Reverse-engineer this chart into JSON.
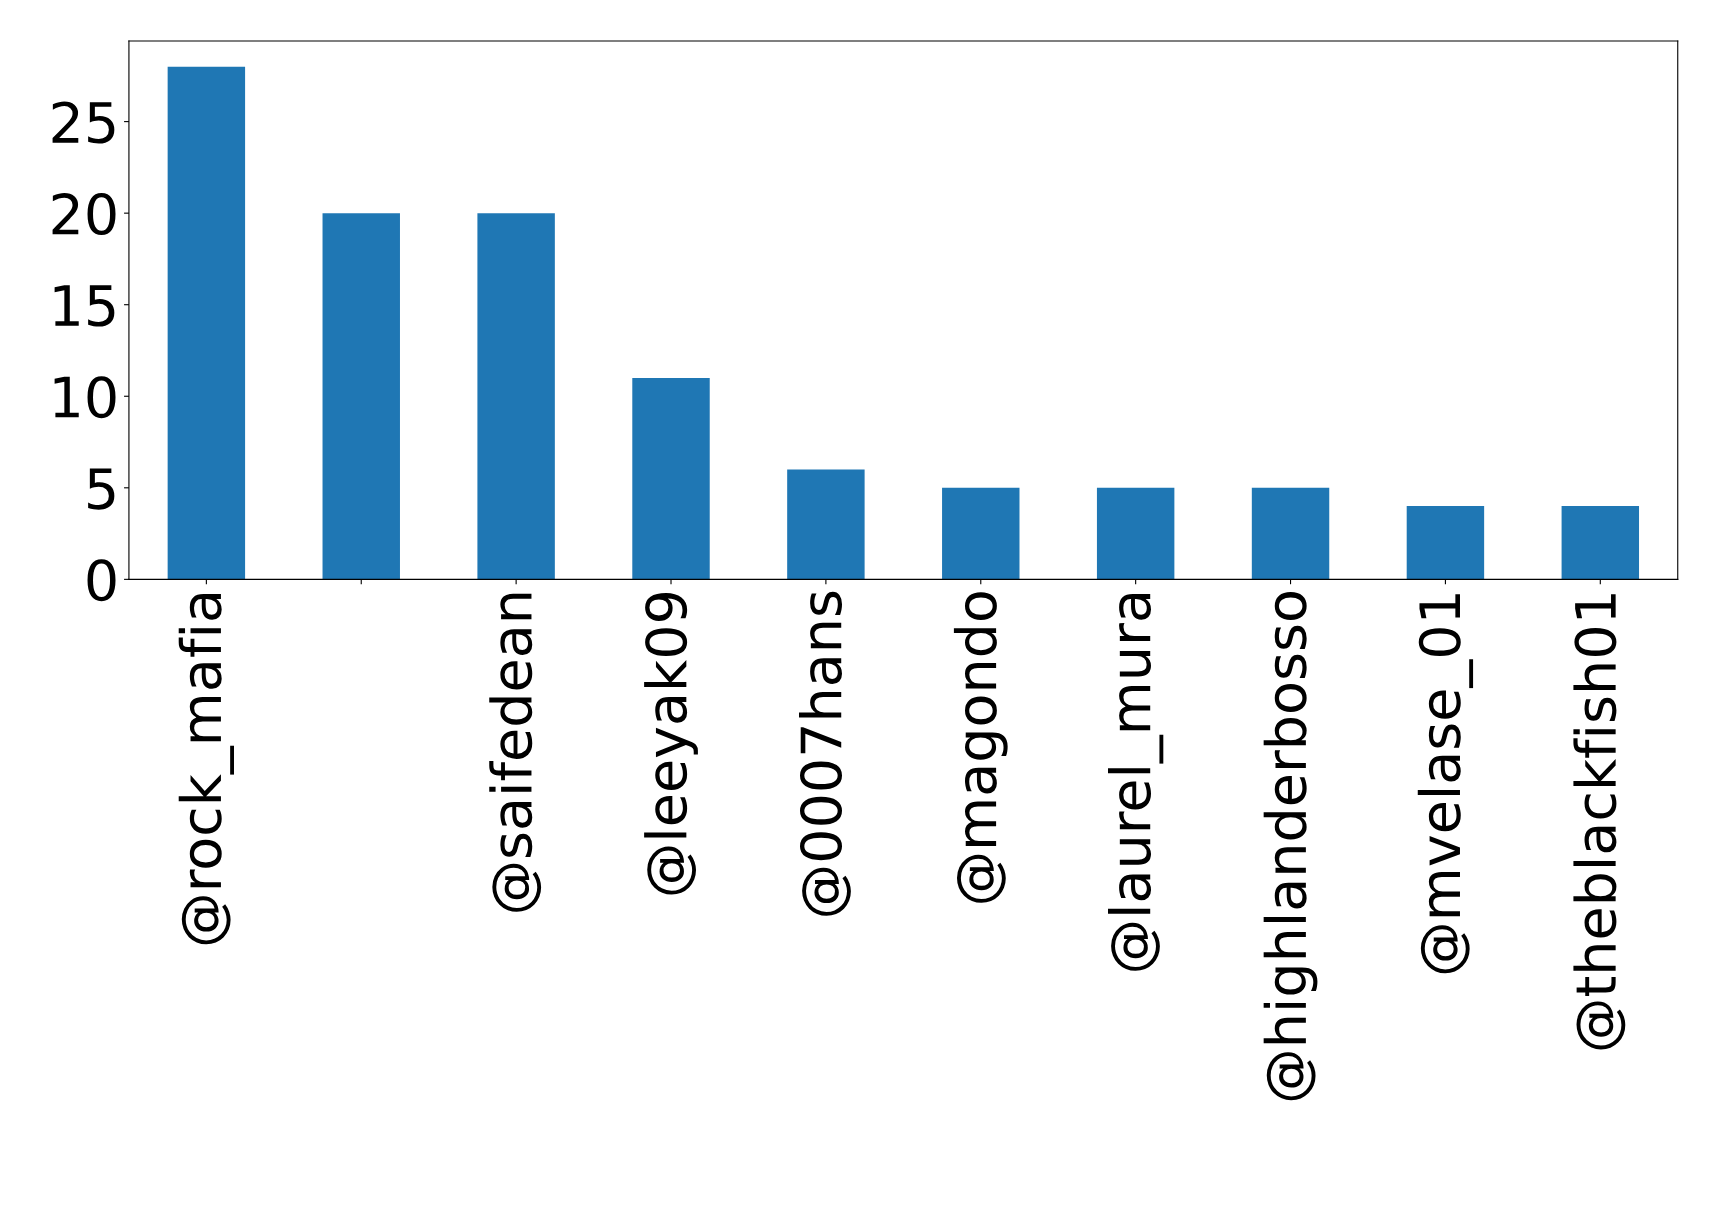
{
  "chart_data": {
    "type": "bar",
    "categories": [
      "@rock_mafia",
      null,
      "@saifedean",
      "@leeyak09",
      "@0007hans",
      "@magondo",
      "@laurel_mura",
      "@highlanderbosso",
      "@mvelase_01",
      "@theblackfish01"
    ],
    "values": [
      28,
      20,
      20,
      11,
      6,
      5,
      5,
      5,
      4,
      4
    ],
    "color": "#1f77b4",
    "ylim": [
      0,
      29.4
    ],
    "yticks": [
      0,
      5,
      10,
      15,
      20,
      25
    ],
    "grid": false,
    "legend": false
  }
}
